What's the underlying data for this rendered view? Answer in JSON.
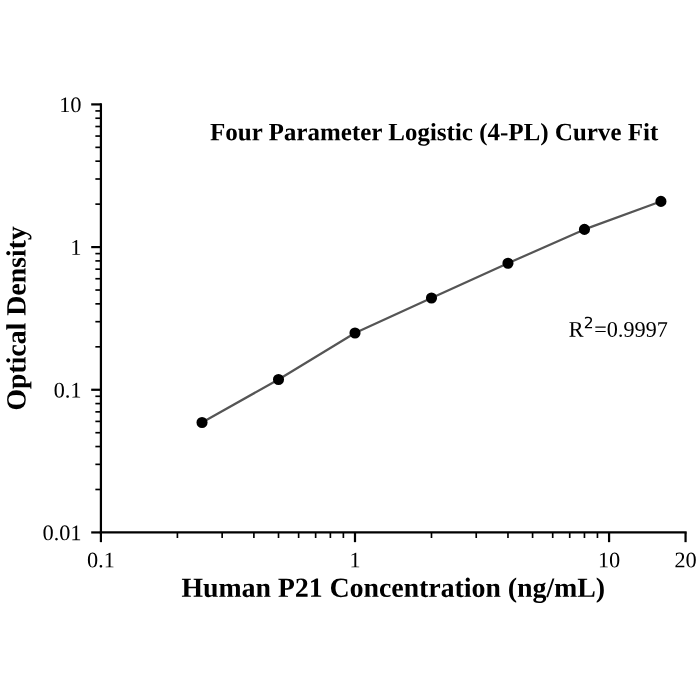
{
  "chart_data": {
    "type": "line",
    "title": "Four Parameter Logistic (4-PL) Curve Fit",
    "xlabel": "Human P21 Concentration (ng/mL)",
    "ylabel": "Optical Density",
    "x": [
      0.25,
      0.5,
      1,
      2,
      4,
      8,
      16
    ],
    "series": [
      {
        "color": "#555555",
        "values": [
          0.059,
          0.118,
          0.25,
          0.44,
          0.77,
          1.33,
          2.09
        ],
        "marker": "none"
      },
      {
        "type": "scatter",
        "color": "#000000",
        "values": [
          0.059,
          0.118,
          0.25,
          0.44,
          0.77,
          1.33,
          2.09
        ],
        "marker": "circle"
      }
    ],
    "log": "xy",
    "xlim": [
      0.1,
      20
    ],
    "xticks": [
      0.1,
      1,
      10,
      20
    ],
    "ylim": [
      0.01,
      10
    ],
    "yticks": [
      0.01,
      0.1,
      1,
      10
    ],
    "annotations": [
      "R$^{2}$=0.9997"
    ],
    "grid": false,
    "legend": false
  }
}
